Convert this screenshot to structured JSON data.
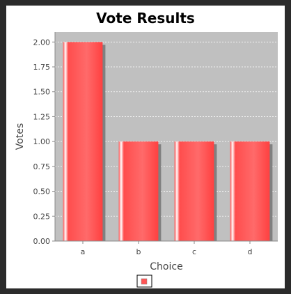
{
  "chart_data": {
    "type": "bar",
    "title": "Vote Results",
    "xlabel": "Choice",
    "ylabel": "Votes",
    "categories": [
      "a",
      "b",
      "c",
      "d"
    ],
    "series": [
      {
        "values": [
          2,
          1,
          1,
          1
        ]
      }
    ],
    "ylim": [
      0,
      2.1
    ],
    "yticks": [
      "0.00",
      "0.25",
      "0.50",
      "0.75",
      "1.00",
      "1.25",
      "1.50",
      "1.75",
      "2.00"
    ],
    "grid": true,
    "legend": "bottom",
    "colors": {
      "bar": "#ff5555",
      "plot_background": "#c0c0c0",
      "gridline": "#ffffff"
    }
  }
}
